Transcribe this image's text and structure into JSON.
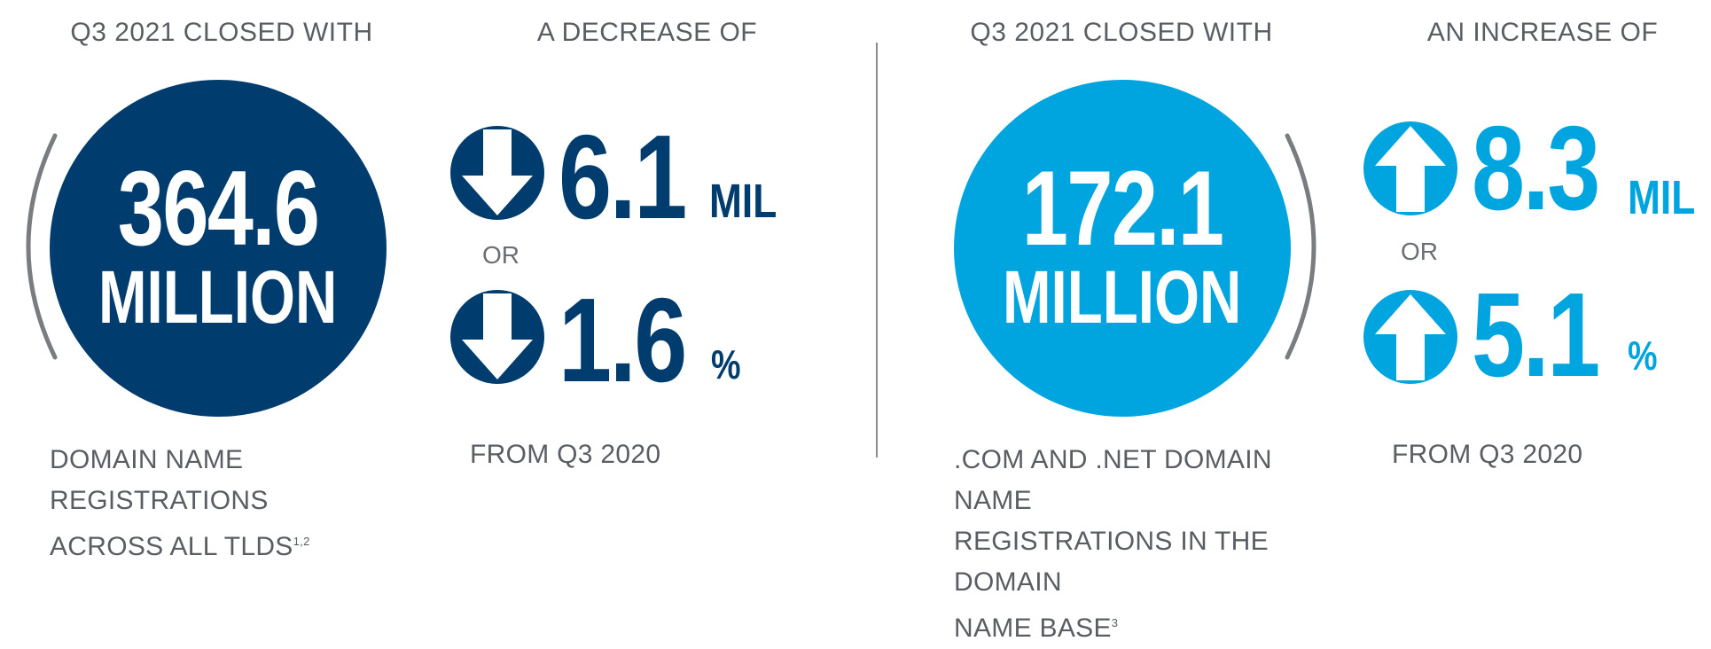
{
  "colors": {
    "dark_blue": "#003c6d",
    "light_blue": "#00a5e0",
    "gray_text": "#5a5e63",
    "bracket_gray": "#7a7d80"
  },
  "left": {
    "heading": "Q3 2021 CLOSED WITH",
    "circle_value": "364.6",
    "circle_unit": "MILLION",
    "change_heading": "A DECREASE OF",
    "change_direction": "down-arrow-icon",
    "change_abs_value": "6.1",
    "change_abs_unit": "MIL",
    "or_label": "OR",
    "change_pct_value": "1.6",
    "change_pct_unit": "%",
    "caption_line1": "DOMAIN NAME REGISTRATIONS",
    "caption_line2": "ACROSS ALL TLDS",
    "caption_footnote": "1,2",
    "from_label": "FROM Q3 2020"
  },
  "right": {
    "heading": "Q3 2021 CLOSED WITH",
    "circle_value": "172.1",
    "circle_unit": "MILLION",
    "change_heading": "AN INCREASE OF",
    "change_direction": "up-arrow-icon",
    "change_abs_value": "8.3",
    "change_abs_unit": "MIL",
    "or_label": "OR",
    "change_pct_value": "5.1",
    "change_pct_unit": "%",
    "caption_line1": ".COM AND .NET DOMAIN NAME",
    "caption_line2": "REGISTRATIONS IN THE DOMAIN",
    "caption_line3": "NAME BASE",
    "caption_footnote": "3",
    "from_label": "FROM Q3 2020"
  }
}
